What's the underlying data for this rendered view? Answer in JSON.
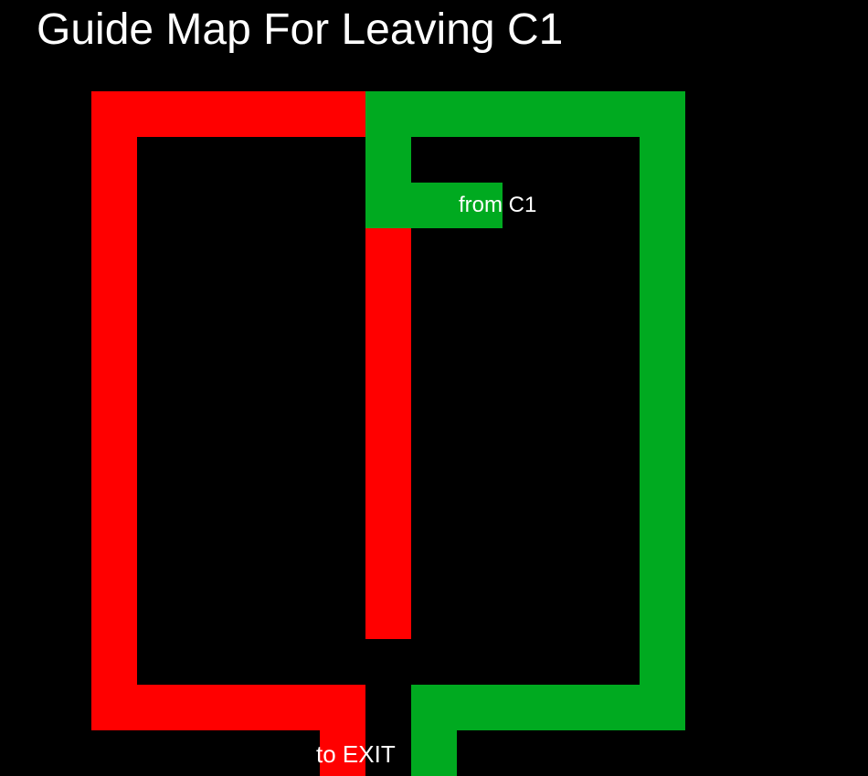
{
  "title": "Guide Map For Leaving C1",
  "labels": {
    "start": "from C1",
    "end": "to EXIT"
  },
  "colors": {
    "background": "#000000",
    "red_route": "#ff0000",
    "green_route": "#00aa20",
    "text": "#ffffff"
  }
}
